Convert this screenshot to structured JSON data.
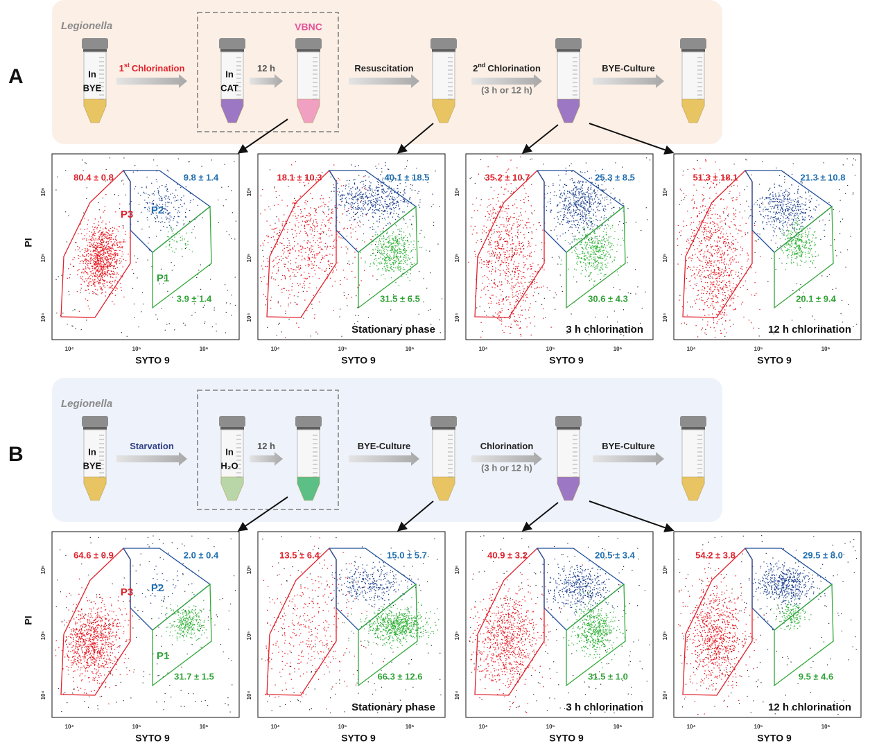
{
  "panels": [
    {
      "letter": "A",
      "organism": "Legionella",
      "tubes": [
        [
          "In",
          "BYE"
        ],
        [
          "In",
          "CAT"
        ]
      ],
      "state": "VBNC",
      "arrows": [
        {
          "ordinal": "1",
          "suffix": "st",
          "label": "Chlorination"
        },
        {
          "label": "12 h"
        },
        {
          "label": "Resuscitation"
        },
        {
          "ordinal": "2",
          "suffix": "nd",
          "label": "Chlorination",
          "note": "(3 h or 12 h)"
        },
        {
          "label": "BYE-Culture"
        }
      ],
      "gates": [
        "P1",
        "P2",
        "P3"
      ],
      "x_label": "SYTO 9",
      "y_label": "PI",
      "ticks": [
        "10⁴",
        "10⁵",
        "10⁶"
      ],
      "plots": [
        {
          "p3": "80.4 ± 0.8",
          "p2": "9.8 ± 1.4",
          "p1": "3.9 ± 1.4"
        },
        {
          "p3": "18.1 ± 10.3",
          "p2": "40.1 ± 18.5",
          "p1": "31.5 ± 6.5",
          "caption": "Stationary phase"
        },
        {
          "p3": "35.2 ± 10.7",
          "p2": "25.3 ± 8.5",
          "p1": "30.6 ± 4.3",
          "caption": "3 h chlorination"
        },
        {
          "p3": "51.3 ± 18.1",
          "p2": "21.3 ± 10.8",
          "p1": "20.1 ± 9.4",
          "caption": "12 h chlorination"
        }
      ]
    },
    {
      "letter": "B",
      "organism": "Legionella",
      "tubes": [
        [
          "In",
          "BYE"
        ],
        [
          "In",
          "H₂O"
        ]
      ],
      "arrows": [
        {
          "label": "Starvation"
        },
        {
          "label": "12 h"
        },
        {
          "label": "BYE-Culture"
        },
        {
          "label": "Chlorination",
          "note": "(3 h or 12 h)"
        },
        {
          "label": "BYE-Culture"
        }
      ],
      "gates": [
        "P1",
        "P2",
        "P3"
      ],
      "x_label": "SYTO 9",
      "y_label": "PI",
      "ticks": [
        "10⁴",
        "10⁵",
        "10⁶"
      ],
      "plots": [
        {
          "p3": "64.6 ± 0.9",
          "p2": "2.0 ± 0.4",
          "p1": "31.7 ± 1.5"
        },
        {
          "p3": "13.5 ± 6.4",
          "p2": "15.0 ± 5.7",
          "p1": "66.3 ± 12.6",
          "caption": "Stationary phase"
        },
        {
          "p3": "40.9 ± 3.2",
          "p2": "20.5 ± 3.4",
          "p1": "31.5 ± 1.0",
          "caption": "3 h chlorination"
        },
        {
          "p3": "54.2 ± 3.8",
          "p2": "29.5 ± 8.0",
          "p1": "9.5 ± 4.6",
          "caption": "12 h chlorination"
        }
      ]
    }
  ]
}
